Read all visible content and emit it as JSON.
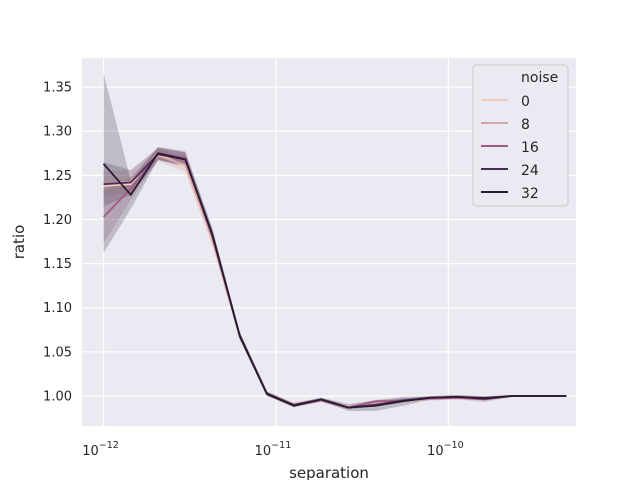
{
  "chart_data": {
    "type": "line",
    "title": "",
    "xlabel": "separation",
    "ylabel": "ratio",
    "x_scale": "log",
    "xlim": [
      7.5e-13,
      5.5e-10
    ],
    "ylim": [
      0.966,
      1.383
    ],
    "x_ticks": [
      {
        "value": 1e-12,
        "base": "10",
        "exp": "−12"
      },
      {
        "value": 1e-11,
        "base": "10",
        "exp": "−11"
      },
      {
        "value": 1e-10,
        "base": "10",
        "exp": "−10"
      }
    ],
    "y_ticks": [
      "1.00",
      "1.05",
      "1.10",
      "1.15",
      "1.20",
      "1.25",
      "1.30",
      "1.35"
    ],
    "grid": true,
    "legend": {
      "title": "noise",
      "placement": "upper right"
    },
    "x": [
      1e-12,
      1.44e-12,
      2.07e-12,
      2.98e-12,
      4.28e-12,
      6.16e-12,
      8.86e-12,
      1.27e-11,
      1.83e-11,
      2.64e-11,
      3.79e-11,
      5.46e-11,
      7.85e-11,
      1.13e-10,
      1.62e-10,
      2.34e-10,
      3.36e-10,
      4.83e-10
    ],
    "series": [
      {
        "name": "0",
        "color": "#f0cdb8",
        "values": [
          1.238,
          1.24,
          1.275,
          1.26,
          1.175,
          1.068,
          1.003,
          0.991,
          0.995,
          0.988,
          0.99,
          0.994,
          0.997,
          0.999,
          0.998,
          1.0,
          1.0,
          1.0
        ],
        "band_low": [
          1.23,
          1.232,
          1.268,
          1.252,
          1.168,
          1.064,
          1.001,
          0.989,
          0.993,
          0.986,
          0.988,
          0.992,
          0.995,
          0.997,
          0.996,
          0.999,
          0.999,
          0.999
        ],
        "band_high": [
          1.246,
          1.25,
          1.282,
          1.268,
          1.182,
          1.072,
          1.005,
          0.993,
          0.997,
          0.99,
          0.992,
          0.996,
          0.999,
          1.001,
          1.0,
          1.001,
          1.001,
          1.001
        ]
      },
      {
        "name": "8",
        "color": "#d9a3aa",
        "values": [
          1.24,
          1.243,
          1.272,
          1.262,
          1.178,
          1.068,
          1.003,
          0.99,
          0.996,
          0.987,
          0.991,
          0.995,
          0.997,
          0.998,
          0.997,
          1.0,
          1.0,
          1.0
        ],
        "band_low": [
          1.225,
          1.23,
          1.265,
          1.255,
          1.17,
          1.064,
          1.001,
          0.988,
          0.994,
          0.985,
          0.989,
          0.993,
          0.995,
          0.996,
          0.995,
          0.999,
          0.999,
          0.999
        ],
        "band_high": [
          1.255,
          1.256,
          1.28,
          1.27,
          1.186,
          1.072,
          1.005,
          0.992,
          0.998,
          0.989,
          0.993,
          0.997,
          0.999,
          1.0,
          0.999,
          1.001,
          1.001,
          1.001
        ]
      },
      {
        "name": "16",
        "color": "#a05a85",
        "values": [
          1.203,
          1.235,
          1.275,
          1.27,
          1.18,
          1.069,
          1.003,
          0.99,
          0.995,
          0.987,
          0.994,
          0.995,
          0.997,
          0.998,
          0.996,
          1.0,
          1.0,
          1.0
        ],
        "band_low": [
          1.173,
          1.222,
          1.268,
          1.262,
          1.172,
          1.065,
          1.001,
          0.988,
          0.993,
          0.985,
          0.992,
          0.993,
          0.995,
          0.996,
          0.993,
          0.999,
          0.999,
          0.999
        ],
        "band_high": [
          1.233,
          1.248,
          1.282,
          1.278,
          1.188,
          1.073,
          1.005,
          0.992,
          0.997,
          0.989,
          0.996,
          0.997,
          0.999,
          1.0,
          0.999,
          1.001,
          1.001,
          1.001
        ]
      },
      {
        "name": "24",
        "color": "#4a2e55",
        "values": [
          1.24,
          1.242,
          1.274,
          1.268,
          1.182,
          1.069,
          1.003,
          0.99,
          0.996,
          0.987,
          0.99,
          0.995,
          0.998,
          0.999,
          0.998,
          1.0,
          1.0,
          1.0
        ],
        "band_low": [
          1.215,
          1.228,
          1.267,
          1.26,
          1.175,
          1.065,
          1.001,
          0.988,
          0.994,
          0.985,
          0.988,
          0.993,
          0.996,
          0.997,
          0.996,
          0.999,
          0.999,
          0.999
        ],
        "band_high": [
          1.265,
          1.256,
          1.281,
          1.276,
          1.189,
          1.073,
          1.005,
          0.992,
          0.998,
          0.989,
          0.992,
          0.997,
          1.0,
          1.001,
          1.0,
          1.001,
          1.001,
          1.001
        ]
      },
      {
        "name": "32",
        "color": "#2b1a33",
        "values": [
          1.263,
          1.228,
          1.275,
          1.268,
          1.183,
          1.068,
          1.002,
          0.989,
          0.996,
          0.987,
          0.989,
          0.994,
          0.998,
          0.999,
          0.997,
          1.0,
          1.0,
          1.0
        ],
        "band_low": [
          1.162,
          1.212,
          1.268,
          1.26,
          1.176,
          1.064,
          1.0,
          0.987,
          0.994,
          0.983,
          0.983,
          0.989,
          0.996,
          0.997,
          0.995,
          0.999,
          0.999,
          0.999
        ],
        "band_high": [
          1.366,
          1.244,
          1.282,
          1.276,
          1.19,
          1.072,
          1.004,
          0.991,
          0.998,
          0.991,
          0.995,
          0.999,
          1.0,
          1.001,
          0.999,
          1.001,
          1.001,
          1.001
        ]
      }
    ]
  }
}
